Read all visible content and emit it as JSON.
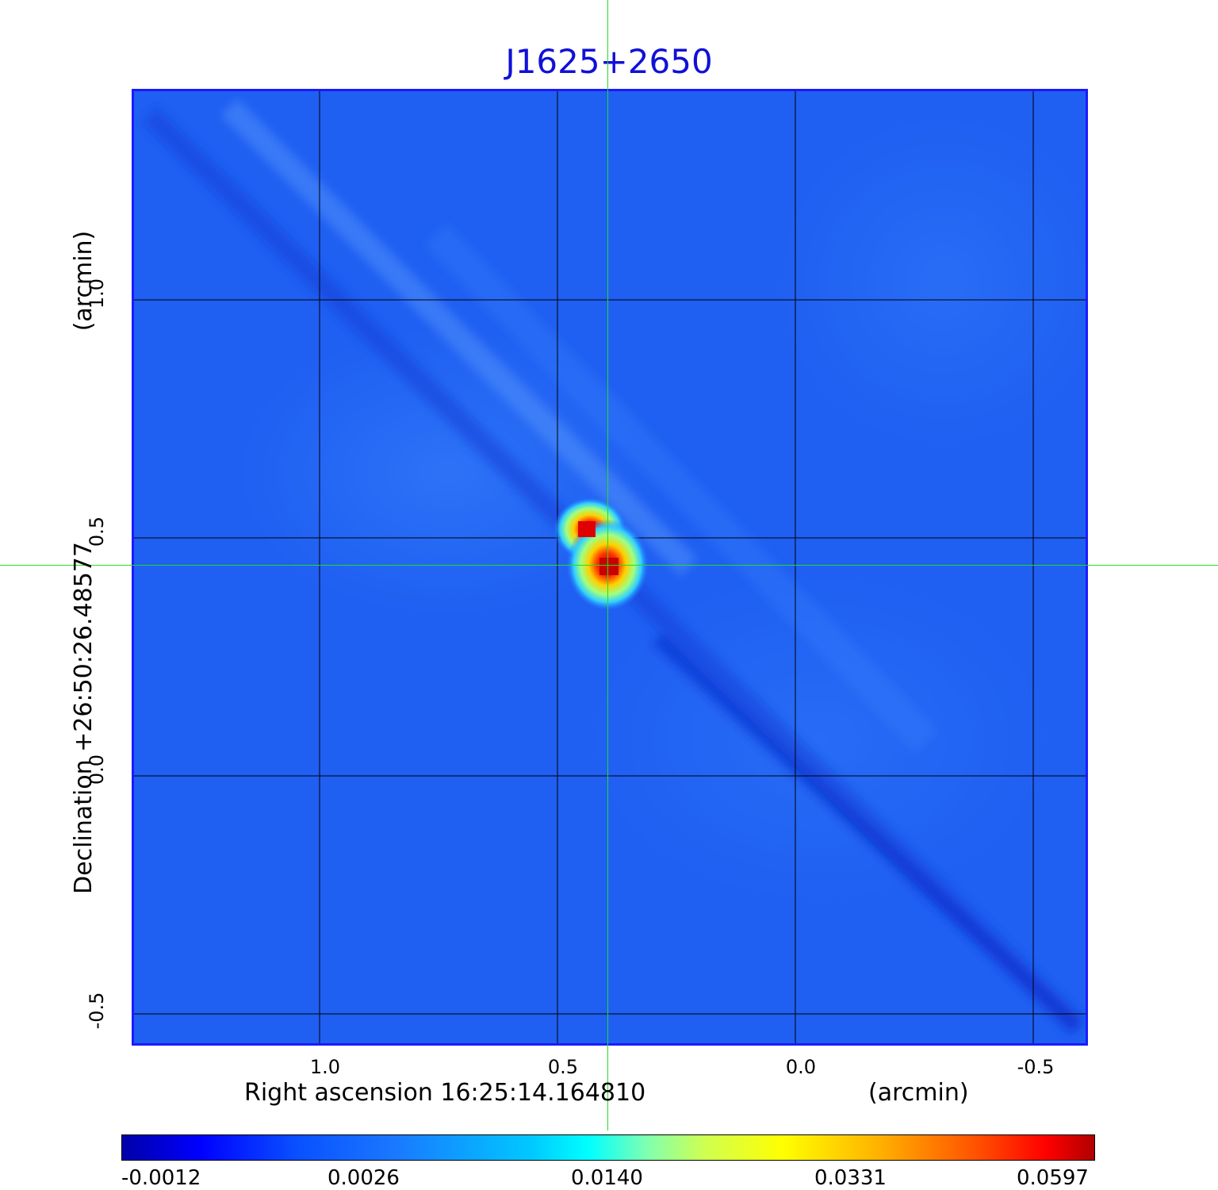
{
  "title": "J1625+2650",
  "x_axis": {
    "label": "Right ascension  16:25:14.164810",
    "unit": "(arcmin)",
    "ticks": [
      "1.0",
      "0.5",
      "0.0",
      "-0.5"
    ]
  },
  "y_axis": {
    "label": "Declination  +26:50:26.48577",
    "unit": "(arcmin)",
    "ticks": [
      "1.0",
      "0.5",
      "0.0",
      "-0.5"
    ]
  },
  "colorbar": {
    "ticks": [
      "-0.0012",
      "0.0026",
      "0.0140",
      "0.0331",
      "0.0597"
    ]
  },
  "colors": {
    "title": "#1010d8",
    "crosshair": "#22dd22",
    "background_map": "#1f5ff2"
  }
}
